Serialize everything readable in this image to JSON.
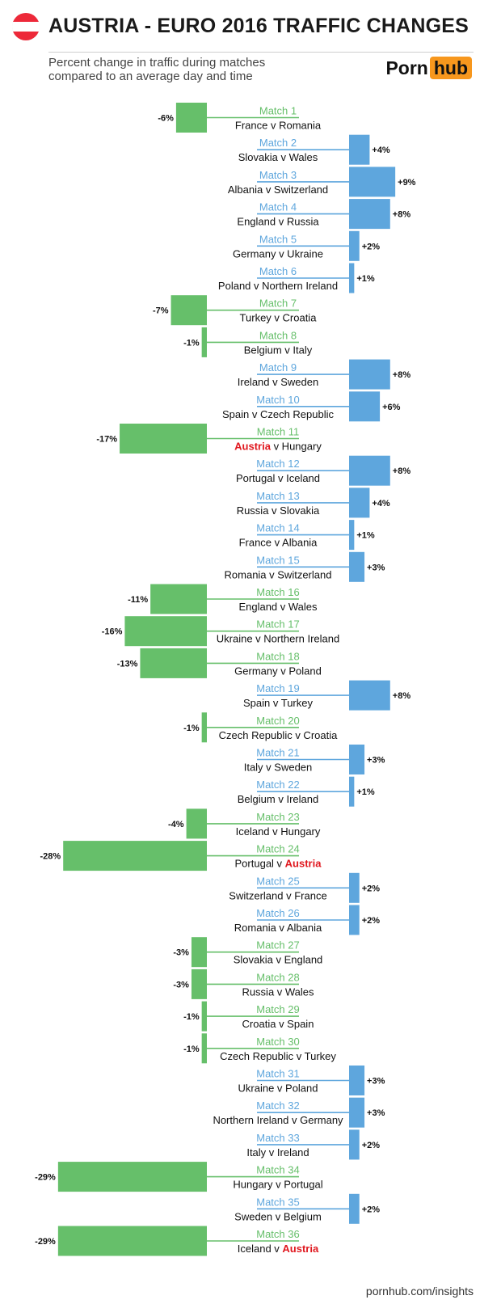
{
  "header": {
    "title": "AUSTRIA - EURO 2016 TRAFFIC CHANGES",
    "subtitle_line1": "Percent change in traffic during matches",
    "subtitle_line2": "compared to an average day and time",
    "logo_part1": "Porn",
    "logo_part2": "hub",
    "flag_colors": [
      "#ed2939",
      "#ffffff",
      "#ed2939"
    ]
  },
  "footer": {
    "source": "pornhub.com/insights"
  },
  "colors": {
    "positive": "#5ea6dd",
    "negative": "#66bf6a",
    "highlight": "#e0171e",
    "text": "#111111",
    "logo_accent": "#f7971d"
  },
  "chart_data": {
    "type": "bar",
    "orientation": "horizontal-diverging",
    "title": "AUSTRIA - EURO 2016 TRAFFIC CHANGES",
    "unit": "%",
    "highlight_team": "Austria",
    "matches": [
      {
        "label": "Match 1",
        "teams": "France v Romania",
        "value": -6
      },
      {
        "label": "Match 2",
        "teams": "Slovakia v Wales",
        "value": 4
      },
      {
        "label": "Match 3",
        "teams": "Albania v Switzerland",
        "value": 9
      },
      {
        "label": "Match 4",
        "teams": "England v Russia",
        "value": 8
      },
      {
        "label": "Match 5",
        "teams": "Germany v Ukraine",
        "value": 2
      },
      {
        "label": "Match 6",
        "teams": "Poland v Northern Ireland",
        "value": 1
      },
      {
        "label": "Match 7",
        "teams": "Turkey v Croatia",
        "value": -7
      },
      {
        "label": "Match 8",
        "teams": "Belgium v Italy",
        "value": -1
      },
      {
        "label": "Match 9",
        "teams": "Ireland v Sweden",
        "value": 8
      },
      {
        "label": "Match 10",
        "teams": "Spain v Czech Republic",
        "value": 6
      },
      {
        "label": "Match 11",
        "teams": "Austria v Hungary",
        "value": -17
      },
      {
        "label": "Match 12",
        "teams": "Portugal v Iceland",
        "value": 8
      },
      {
        "label": "Match 13",
        "teams": "Russia v Slovakia",
        "value": 4
      },
      {
        "label": "Match 14",
        "teams": "France v Albania",
        "value": 1
      },
      {
        "label": "Match 15",
        "teams": "Romania v Switzerland",
        "value": 3
      },
      {
        "label": "Match 16",
        "teams": "England v Wales",
        "value": -11
      },
      {
        "label": "Match 17",
        "teams": "Ukraine v Northern Ireland",
        "value": -16
      },
      {
        "label": "Match 18",
        "teams": "Germany v Poland",
        "value": -13
      },
      {
        "label": "Match 19",
        "teams": "Spain v Turkey",
        "value": 8
      },
      {
        "label": "Match 20",
        "teams": "Czech Republic v Croatia",
        "value": -1
      },
      {
        "label": "Match 21",
        "teams": "Italy v Sweden",
        "value": 3
      },
      {
        "label": "Match 22",
        "teams": "Belgium v Ireland",
        "value": 1
      },
      {
        "label": "Match 23",
        "teams": "Iceland v Hungary",
        "value": -4
      },
      {
        "label": "Match 24",
        "teams": "Portugal v Austria",
        "value": -28
      },
      {
        "label": "Match 25",
        "teams": "Switzerland v France",
        "value": 2
      },
      {
        "label": "Match 26",
        "teams": "Romania v Albania",
        "value": 2
      },
      {
        "label": "Match 27",
        "teams": "Slovakia v England",
        "value": -3
      },
      {
        "label": "Match 28",
        "teams": "Russia v Wales",
        "value": -3
      },
      {
        "label": "Match 29",
        "teams": "Croatia v Spain",
        "value": -1
      },
      {
        "label": "Match 30",
        "teams": "Czech Republic v Turkey",
        "value": -1
      },
      {
        "label": "Match 31",
        "teams": "Ukraine v Poland",
        "value": 3
      },
      {
        "label": "Match 32",
        "teams": "Northern Ireland v Germany",
        "value": 3
      },
      {
        "label": "Match 33",
        "teams": "Italy v Ireland",
        "value": 2
      },
      {
        "label": "Match 34",
        "teams": "Hungary v Portugal",
        "value": -29
      },
      {
        "label": "Match 35",
        "teams": "Sweden v Belgium",
        "value": 2
      },
      {
        "label": "Match 36",
        "teams": "Iceland v Austria",
        "value": -29
      }
    ]
  }
}
